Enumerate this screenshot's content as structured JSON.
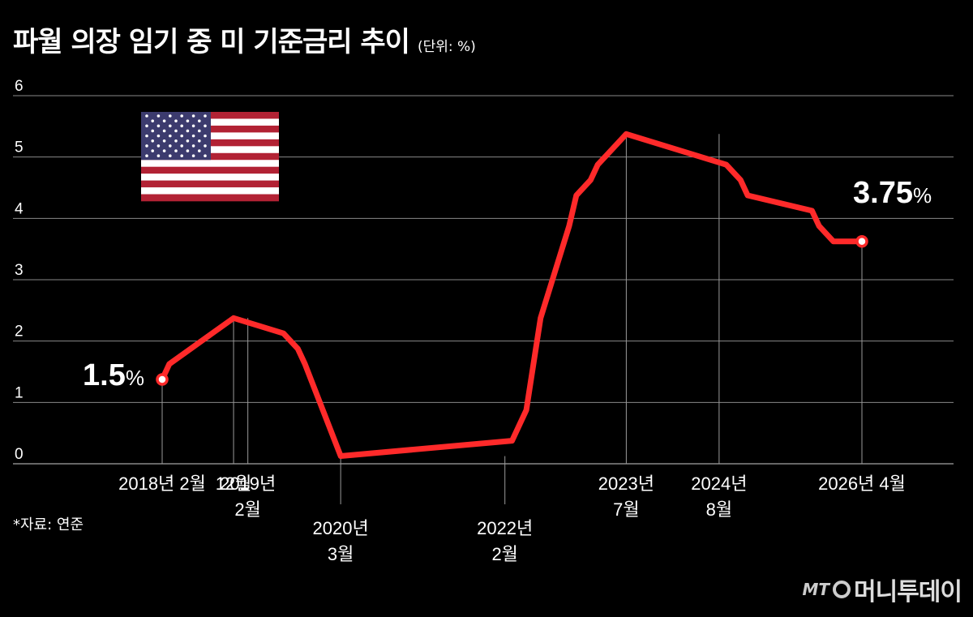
{
  "title": "파월 의장 임기 중 미 기준금리 추이",
  "unit": "(단위: %)",
  "source": "*자료: 연준",
  "logo": {
    "mt": "MT",
    "name": "머니투데이"
  },
  "flag_icon": "us-flag-icon",
  "colors": {
    "background": "#000000",
    "line": "#ff2a2a",
    "grid": "#888888",
    "text": "#ffffff"
  },
  "chart_data": {
    "type": "line",
    "title": "파월 의장 임기 중 미 기준금리 추이",
    "ylabel": "",
    "xlabel": "",
    "ylim": [
      0,
      6
    ],
    "yticks": [
      0,
      1,
      2,
      3,
      4,
      5,
      6
    ],
    "grid": true,
    "series": [
      {
        "x": [
          "2018-02",
          "2018-03",
          "2018-06",
          "2018-09",
          "2018-12",
          "2019-07",
          "2019-09",
          "2019-10",
          "2020-03",
          "2022-03",
          "2022-05",
          "2022-06",
          "2022-07",
          "2022-09",
          "2022-11",
          "2022-12",
          "2023-02",
          "2023-03",
          "2023-05",
          "2023-07",
          "2024-09",
          "2024-11",
          "2024-12",
          "2025-09",
          "2025-10",
          "2025-12",
          "2026-04"
        ],
        "values": [
          1.375,
          1.625,
          1.875,
          2.125,
          2.375,
          2.125,
          1.875,
          1.625,
          0.125,
          0.375,
          0.875,
          1.625,
          2.375,
          3.125,
          3.875,
          4.375,
          4.625,
          4.875,
          5.125,
          5.375,
          4.875,
          4.625,
          4.375,
          4.125,
          3.875,
          3.625,
          3.625
        ]
      }
    ],
    "annotations": [
      {
        "x": "2018-02",
        "value_text": "1.5",
        "pct": "%"
      },
      {
        "x": "2026-04",
        "value_text": "3.75",
        "pct": "%"
      }
    ],
    "date_labels": [
      {
        "x": "2018-02",
        "lines": [
          "2018년 2월"
        ]
      },
      {
        "x": "2018-12",
        "lines": [
          "12월"
        ]
      },
      {
        "x": "2019-02",
        "lines": [
          "2019년",
          "2월"
        ]
      },
      {
        "x": "2020-03",
        "lines": [
          "2020년",
          "3월"
        ]
      },
      {
        "x": "2022-02",
        "lines": [
          "2022년",
          "2월"
        ]
      },
      {
        "x": "2023-07",
        "lines": [
          "2023년",
          "7월"
        ]
      },
      {
        "x": "2024-08",
        "lines": [
          "2024년",
          "8월"
        ]
      },
      {
        "x": "2026-04",
        "lines": [
          "2026년 4월"
        ]
      }
    ]
  }
}
